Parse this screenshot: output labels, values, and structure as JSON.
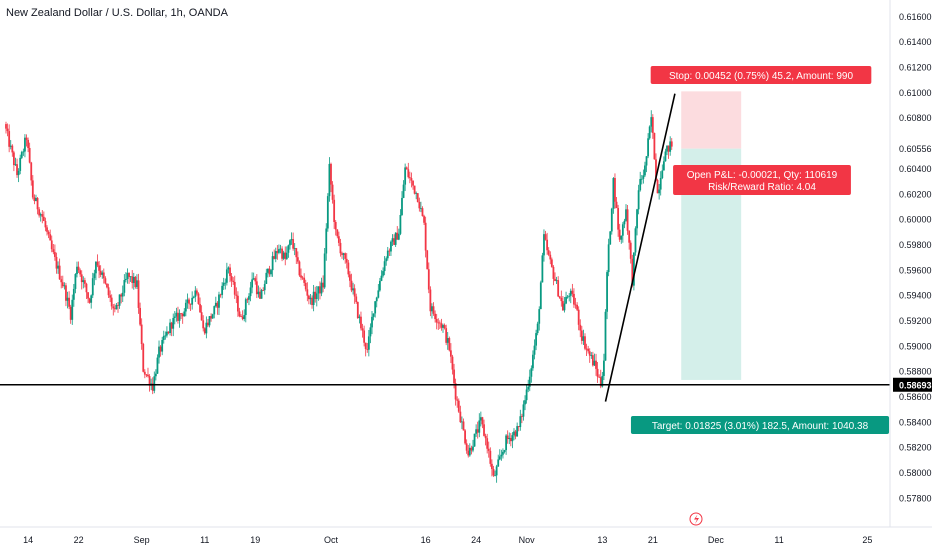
{
  "title": "New Zealand Dollar / U.S. Dollar, 1h, OANDA",
  "colors": {
    "up": "#089981",
    "down": "#f23645",
    "stop_zone": "#fcdcdf",
    "target_zone": "#d4efea",
    "stop_label_bg": "#f23645",
    "target_label_bg": "#089981",
    "price_line": "#000000",
    "axis_text": "#131722",
    "grid": "#e0e3eb"
  },
  "chart_data": {
    "type": "candlestick",
    "symbol": "NZD/USD",
    "timeframe": "1h",
    "ylim": [
      0.5776,
      0.6165
    ],
    "y_ticks": [
      "0.57800",
      "0.58000",
      "0.58200",
      "0.58400",
      "0.58600",
      "0.58800",
      "0.59000",
      "0.59200",
      "0.59400",
      "0.59600",
      "0.59800",
      "0.60000",
      "0.60200",
      "0.60400",
      "0.60556",
      "0.60800",
      "0.61000",
      "0.61200",
      "0.61400",
      "0.61600"
    ],
    "x_ticks": [
      {
        "label": "14",
        "day": 0
      },
      {
        "label": "22",
        "day": 8
      },
      {
        "label": "Sep",
        "day": 18
      },
      {
        "label": "11",
        "day": 28
      },
      {
        "label": "19",
        "day": 36
      },
      {
        "label": "Oct",
        "day": 48
      },
      {
        "label": "16",
        "day": 63
      },
      {
        "label": "24",
        "day": 71
      },
      {
        "label": "Nov",
        "day": 79
      },
      {
        "label": "13",
        "day": 91
      },
      {
        "label": "21",
        "day": 99
      },
      {
        "label": "Dec",
        "day": 109
      },
      {
        "label": "11",
        "day": 119
      },
      {
        "label": "25",
        "day": 133
      }
    ],
    "x_range_days": [
      -3.5,
      135
    ],
    "price_path": [
      [
        -3.5,
        0.6075
      ],
      [
        -1.5,
        0.6035
      ],
      [
        0,
        0.6065
      ],
      [
        1,
        0.6018
      ],
      [
        2.5,
        0.6002
      ],
      [
        4,
        0.5975
      ],
      [
        6,
        0.5945
      ],
      [
        7,
        0.5925
      ],
      [
        8,
        0.5965
      ],
      [
        10,
        0.5935
      ],
      [
        11,
        0.5968
      ],
      [
        12,
        0.5955
      ],
      [
        14,
        0.5925
      ],
      [
        16,
        0.5955
      ],
      [
        17.5,
        0.5948
      ],
      [
        18.5,
        0.5882
      ],
      [
        20,
        0.5868
      ],
      [
        21,
        0.5895
      ],
      [
        23,
        0.5918
      ],
      [
        25,
        0.5928
      ],
      [
        27,
        0.5945
      ],
      [
        28,
        0.5912
      ],
      [
        30,
        0.593
      ],
      [
        32,
        0.5962
      ],
      [
        34,
        0.592
      ],
      [
        36,
        0.5955
      ],
      [
        37,
        0.5935
      ],
      [
        38,
        0.5955
      ],
      [
        40,
        0.5978
      ],
      [
        41,
        0.5968
      ],
      [
        42,
        0.5985
      ],
      [
        43,
        0.5962
      ],
      [
        45,
        0.5935
      ],
      [
        47,
        0.5948
      ],
      [
        48,
        0.604
      ],
      [
        49,
        0.5988
      ],
      [
        51,
        0.5958
      ],
      [
        53,
        0.5915
      ],
      [
        54,
        0.5895
      ],
      [
        55,
        0.593
      ],
      [
        57,
        0.5972
      ],
      [
        59,
        0.599
      ],
      [
        60,
        0.604
      ],
      [
        62,
        0.6018
      ],
      [
        63,
        0.5995
      ],
      [
        64,
        0.593
      ],
      [
        66,
        0.5915
      ],
      [
        67,
        0.5898
      ],
      [
        68,
        0.5862
      ],
      [
        69,
        0.5838
      ],
      [
        70,
        0.5815
      ],
      [
        72,
        0.584
      ],
      [
        73,
        0.5822
      ],
      [
        74,
        0.5795
      ],
      [
        76,
        0.5825
      ],
      [
        78,
        0.5835
      ],
      [
        79,
        0.5858
      ],
      [
        80,
        0.5885
      ],
      [
        81,
        0.5915
      ],
      [
        82,
        0.5985
      ],
      [
        83,
        0.5965
      ],
      [
        84,
        0.5948
      ],
      [
        85,
        0.593
      ],
      [
        86,
        0.5942
      ],
      [
        87,
        0.5932
      ],
      [
        88,
        0.5908
      ],
      [
        89,
        0.5895
      ],
      [
        90,
        0.5885
      ],
      [
        91,
        0.587
      ],
      [
        91.5,
        0.589
      ],
      [
        92,
        0.5958
      ],
      [
        93,
        0.603
      ],
      [
        94,
        0.5982
      ],
      [
        95,
        0.6008
      ],
      [
        96,
        0.5952
      ],
      [
        97,
        0.6025
      ],
      [
        98,
        0.604
      ],
      [
        99,
        0.608
      ],
      [
        100,
        0.602
      ],
      [
        101,
        0.605
      ],
      [
        102,
        0.6058
      ]
    ],
    "horizontal_line": {
      "price": 0.58693,
      "label": "0.58693"
    },
    "trend_line": {
      "from": [
        91.5,
        0.5856
      ],
      "to": [
        102.5,
        0.6099
      ]
    },
    "position": {
      "direction": "short",
      "entry": 0.60556,
      "stop": 0.61008,
      "target": 0.58731,
      "start_day": 103.5,
      "end_day": 113,
      "stop_label": "Stop: 0.00452 (0.75%) 45.2, Amount: 990",
      "pnl_label": "Open P&L: -0.00021, Qty: 110619",
      "rr_label": "Risk/Reward Ratio: 4.04",
      "target_label": "Target: 0.01825 (3.01%) 182.5, Amount: 1040.38"
    }
  }
}
